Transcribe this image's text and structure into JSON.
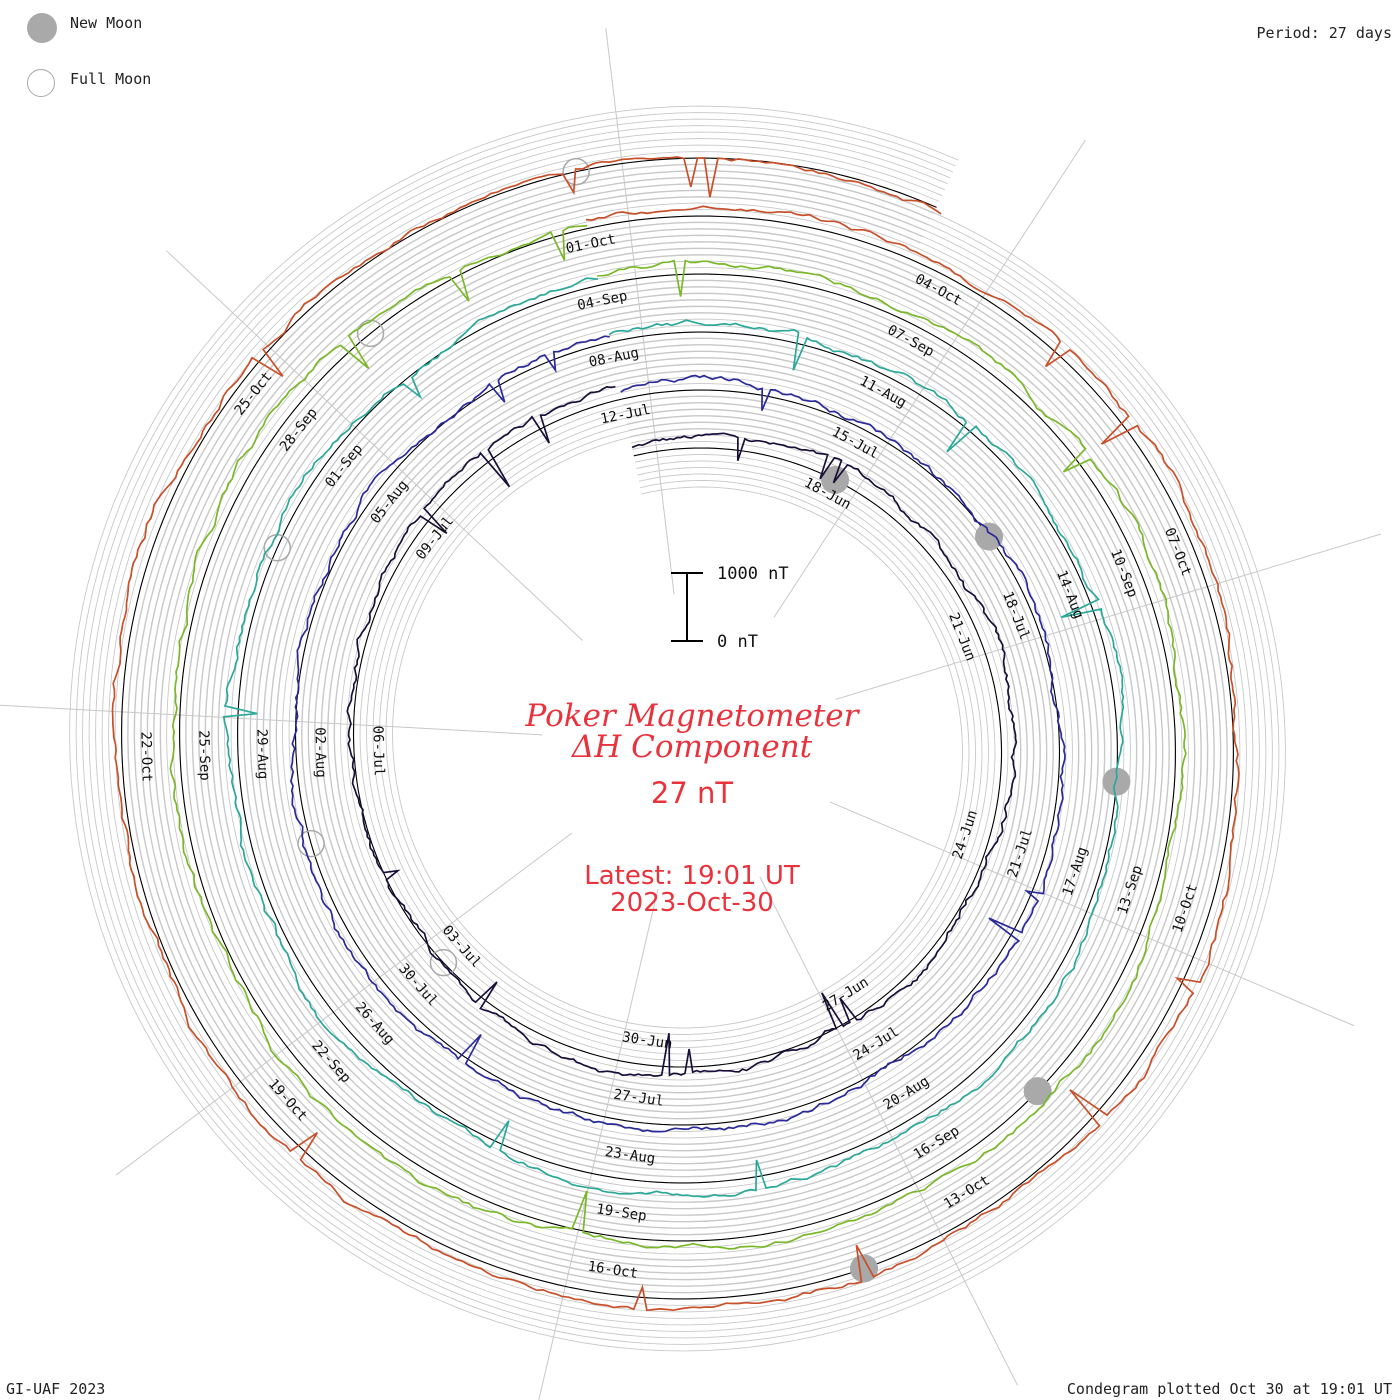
{
  "header": {
    "legend": {
      "new_moon_label": "New Moon",
      "full_moon_label": "Full Moon",
      "new_moon_icon": "filled-grey-circle",
      "full_moon_icon": "hollow-grey-circle"
    },
    "period_text": "Period: 27 days"
  },
  "footer": {
    "credit": "GI-UAF 2023",
    "plotted": "Condegram plotted Oct 30 at 19:01 UT"
  },
  "center": {
    "title_line1": "Poker Magnetometer",
    "title_line2": "ΔH Component",
    "scale_value": "27 nT",
    "latest_line1": "Latest: 19:01 UT",
    "latest_line2": "2023-Oct-30",
    "scalebar_top_label": "1000 nT",
    "scalebar_bottom_label": "0 nT"
  },
  "colors": {
    "title": "#e8323c",
    "grid": "#c8c8c8",
    "baseline": "#000000",
    "moon": "#a9a9a9"
  },
  "chart_data": {
    "type": "condegram",
    "period_days": 27,
    "start": "2023-06-15",
    "end": "2023-10-30",
    "date_labels": [
      "18-Jun",
      "21-Jun",
      "24-Jun",
      "27-Jun",
      "30-Jun",
      "03-Jul",
      "06-Jul",
      "09-Jul",
      "12-Jul",
      "15-Jul",
      "18-Jul",
      "21-Jul",
      "24-Jul",
      "27-Jul",
      "30-Jul",
      "02-Aug",
      "05-Aug",
      "08-Aug",
      "11-Aug",
      "14-Aug",
      "17-Aug",
      "20-Aug",
      "23-Aug",
      "26-Aug",
      "29-Aug",
      "01-Sep",
      "04-Sep",
      "07-Sep",
      "10-Sep",
      "13-Sep",
      "16-Sep",
      "19-Sep",
      "22-Sep",
      "25-Sep",
      "28-Sep",
      "01-Oct",
      "04-Oct",
      "07-Oct",
      "10-Oct",
      "13-Oct",
      "16-Oct",
      "19-Oct",
      "22-Oct",
      "25-Oct"
    ],
    "rotations": [
      {
        "start": "2023-06-15",
        "color": "#1a0f3a"
      },
      {
        "start": "2023-07-12",
        "color": "#2a2a9a"
      },
      {
        "start": "2023-08-08",
        "color": "#2aa89a"
      },
      {
        "start": "2023-09-04",
        "color": "#7ab82a"
      },
      {
        "start": "2023-10-01",
        "color": "#c8502a"
      }
    ],
    "new_moons": [
      "2023-06-18",
      "2023-07-17",
      "2023-08-16",
      "2023-09-15",
      "2023-10-14"
    ],
    "full_moons": [
      "2023-07-03",
      "2023-08-01",
      "2023-08-31",
      "2023-09-29",
      "2023-10-28"
    ]
  }
}
